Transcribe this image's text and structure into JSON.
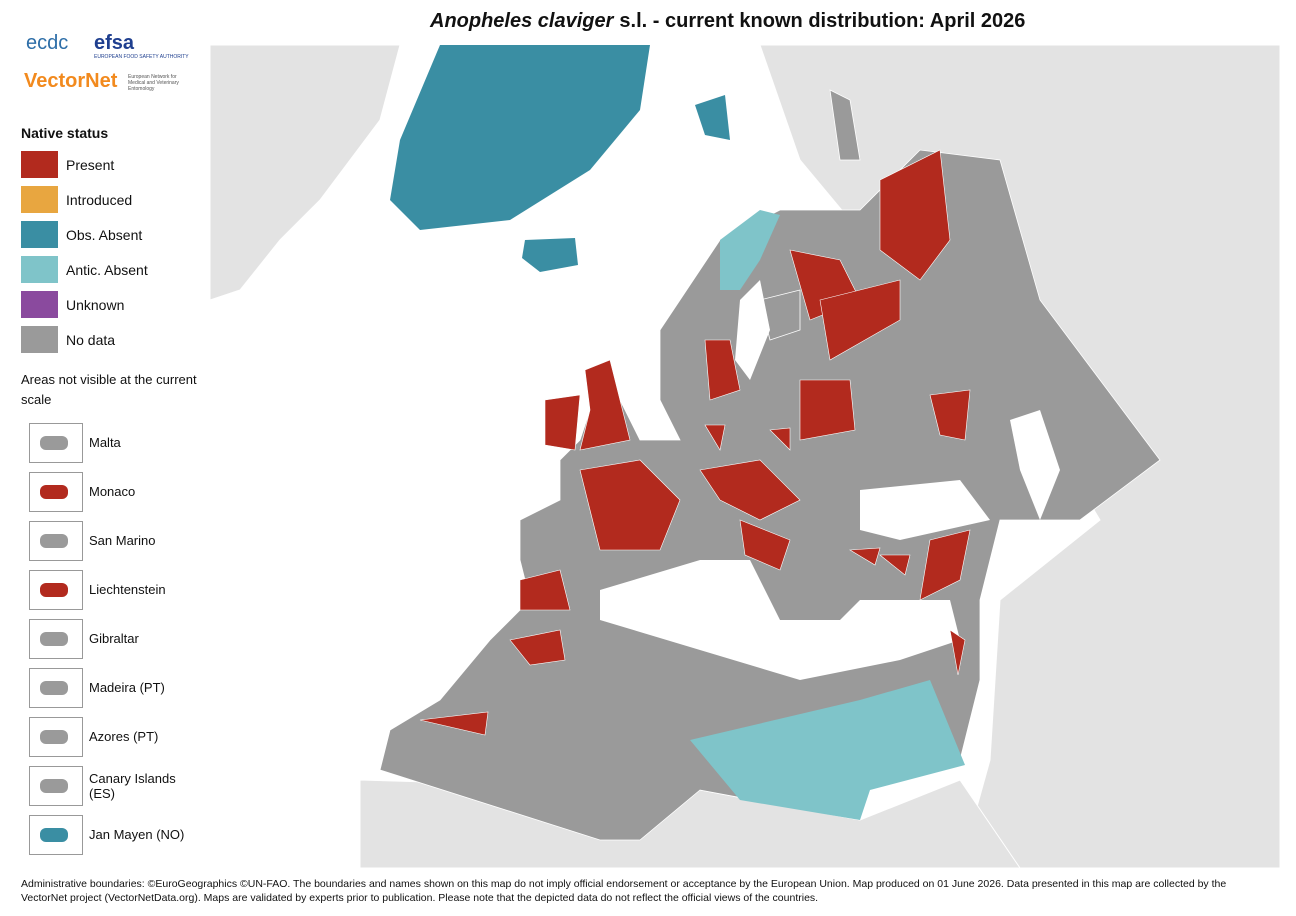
{
  "header": {
    "title_species": "Anopheles claviger",
    "title_rest": "s.l. - current known distribution: April 2026"
  },
  "logos": {
    "ecdc": "ecdc",
    "efsa": "efsa",
    "efsa_sub": "EUROPEAN FOOD SAFETY AUTHORITY",
    "vectornet": "VectorNet",
    "vectornet_sub": "European Network for Medical and Veterinary Entomology"
  },
  "legend": {
    "title": "Native status",
    "items": [
      {
        "label": "Present",
        "color": "#b22a1e"
      },
      {
        "label": "Introduced",
        "color": "#e8a640"
      },
      {
        "label": "Obs. Absent",
        "color": "#3a8ea3"
      },
      {
        "label": "Antic. Absent",
        "color": "#7fc4c9"
      },
      {
        "label": "Unknown",
        "color": "#8a4a9e"
      },
      {
        "label": "No data",
        "color": "#9a9a9a"
      }
    ]
  },
  "insets": {
    "title": "Areas not visible at the current scale",
    "items": [
      {
        "label": "Malta",
        "color": "#9a9a9a"
      },
      {
        "label": "Monaco",
        "color": "#b22a1e"
      },
      {
        "label": "San Marino",
        "color": "#9a9a9a"
      },
      {
        "label": "Liechtenstein",
        "color": "#b22a1e"
      },
      {
        "label": "Gibraltar",
        "color": "#9a9a9a"
      },
      {
        "label": "Madeira (PT)",
        "color": "#9a9a9a"
      },
      {
        "label": "Azores (PT)",
        "color": "#9a9a9a"
      },
      {
        "label": "Canary Islands (ES)",
        "color": "#9a9a9a"
      },
      {
        "label": "Jan Mayen (NO)",
        "color": "#3a8ea3"
      }
    ]
  },
  "footer": {
    "text": "Administrative boundaries: ©EuroGeographics ©UN-FAO. The boundaries and names shown on this map do not imply official endorsement or acceptance by the European Union. Map produced on 01 June 2026. Data presented in this map are collected by the VectorNet project (VectorNetData.org). Maps are validated by experts prior to publication. Please note that the depicted data do not reflect the official views of the countries."
  }
}
